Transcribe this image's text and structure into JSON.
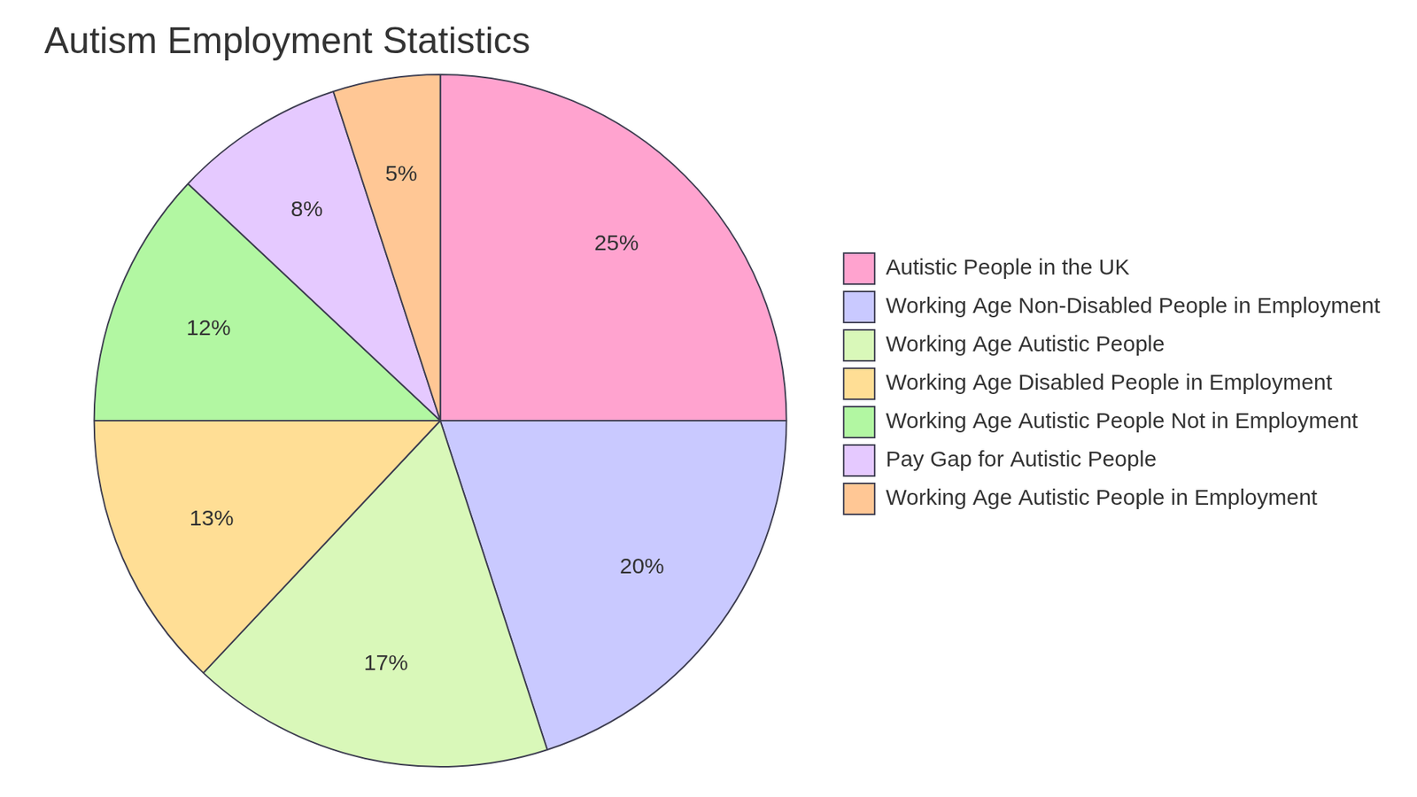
{
  "chart_data": {
    "type": "pie",
    "title": "Autism Employment Statistics",
    "categories": [
      "Autistic People in the UK",
      "Working Age Non-Disabled People in Employment",
      "Working Age Autistic People",
      "Working Age Disabled People in Employment",
      "Working Age Autistic People Not in Employment",
      "Pay Gap for Autistic People",
      "Working Age Autistic People in Employment"
    ],
    "values": [
      25,
      20,
      17,
      13,
      12,
      8,
      5
    ],
    "value_labels": [
      "25%",
      "20%",
      "17%",
      "13%",
      "12%",
      "8%",
      "5%"
    ],
    "colors": [
      "#ffa3cf",
      "#c9c9ff",
      "#d9f8b9",
      "#ffde95",
      "#b2f7a2",
      "#e5c9ff",
      "#ffc795"
    ],
    "data_labels": true,
    "legend": "right"
  }
}
